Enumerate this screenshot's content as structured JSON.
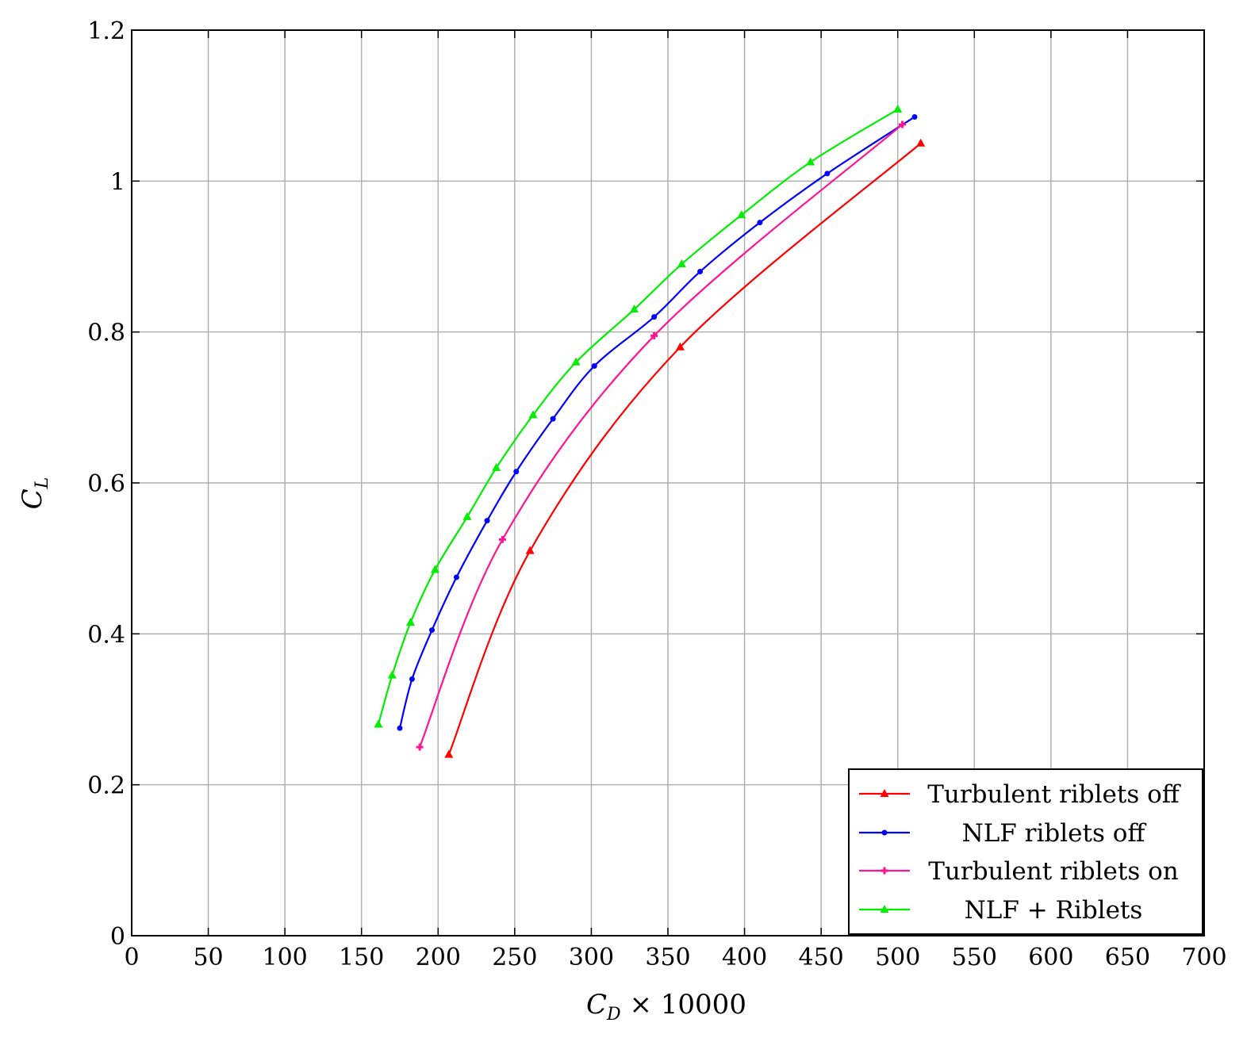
{
  "chart_data": {
    "type": "line",
    "xlabel": "C_D × 10000",
    "xlabel_main": "C",
    "xlabel_sub": "D",
    "xlabel_rest": " × 10000",
    "ylabel": "C_L",
    "ylabel_main": "C",
    "ylabel_sub": "L",
    "xlim": [
      0,
      700
    ],
    "ylim": [
      0,
      1.2
    ],
    "xticks": [
      0,
      50,
      100,
      150,
      200,
      250,
      300,
      350,
      400,
      450,
      500,
      550,
      600,
      650,
      700
    ],
    "xtick_labels": [
      "0",
      "50",
      "100",
      "150",
      "200",
      "250",
      "300",
      "350",
      "400",
      "450",
      "500",
      "550",
      "600",
      "650",
      "700"
    ],
    "yticks": [
      0,
      0.2,
      0.4,
      0.6,
      0.8,
      1,
      1.2
    ],
    "ytick_labels": [
      "0",
      "0.2",
      "0.4",
      "0.6",
      "0.8",
      "1",
      "1.2"
    ],
    "grid": true,
    "legend_position": "bottom-right",
    "series": [
      {
        "name": "Turbulent riblets off",
        "color": "#ff0000",
        "marker": "triangle",
        "x": [
          207,
          260,
          358,
          515
        ],
        "y": [
          0.24,
          0.51,
          0.78,
          1.05
        ]
      },
      {
        "name": "NLF riblets off",
        "color": "#0000ff",
        "marker": "dot",
        "x": [
          175,
          183,
          196,
          212,
          232,
          251,
          275,
          302,
          341,
          371,
          410,
          454,
          511
        ],
        "y": [
          0.275,
          0.34,
          0.405,
          0.475,
          0.55,
          0.615,
          0.685,
          0.755,
          0.82,
          0.88,
          0.945,
          1.01,
          1.085
        ]
      },
      {
        "name": "Turbulent riblets on",
        "color": "#ff1493",
        "marker": "plus",
        "x": [
          188,
          242,
          341,
          503
        ],
        "y": [
          0.25,
          0.525,
          0.795,
          1.075
        ]
      },
      {
        "name": "NLF + Riblets",
        "color": "#00ee00",
        "marker": "triangle",
        "x": [
          161,
          170,
          182,
          198,
          219,
          238,
          262,
          290,
          328,
          359,
          398,
          443,
          500
        ],
        "y": [
          0.28,
          0.345,
          0.415,
          0.485,
          0.555,
          0.62,
          0.69,
          0.76,
          0.83,
          0.89,
          0.955,
          1.025,
          1.095
        ]
      }
    ]
  }
}
